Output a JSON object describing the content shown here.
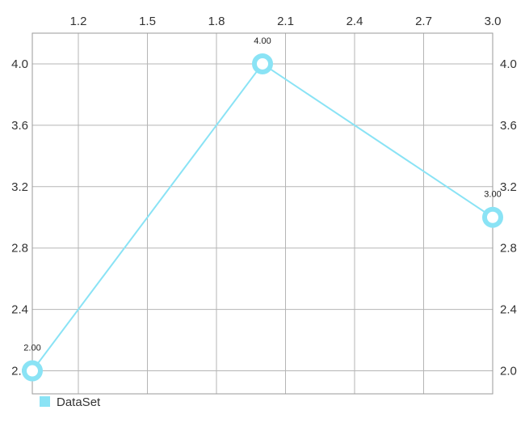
{
  "chart_data": {
    "type": "line",
    "title": "",
    "xlabel": "",
    "ylabel": "",
    "xlim": [
      1.0,
      3.0
    ],
    "ylim": [
      1.85,
      4.2
    ],
    "x_ticks": [
      1.2,
      1.5,
      1.8,
      2.1,
      2.4,
      2.7,
      3.0
    ],
    "x_tick_labels": [
      "1.2",
      "1.5",
      "1.8",
      "2.1",
      "2.4",
      "2.7",
      "3.0"
    ],
    "y_ticks": [
      2.0,
      2.4,
      2.8,
      3.2,
      3.6,
      4.0
    ],
    "y_tick_labels": [
      "2.0",
      "2.4",
      "2.8",
      "3.2",
      "3.6",
      "4.0"
    ],
    "x_axis_position": "top",
    "y_axis_position": "both",
    "grid": true,
    "legend": "bottom-left",
    "series": [
      {
        "name": "DataSet",
        "color": "#8ae3f5",
        "x": [
          1.0,
          2.0,
          3.0
        ],
        "y": [
          2.0,
          4.0,
          3.0
        ],
        "labels": [
          "2.00",
          "4.00",
          "3.00"
        ]
      }
    ]
  }
}
